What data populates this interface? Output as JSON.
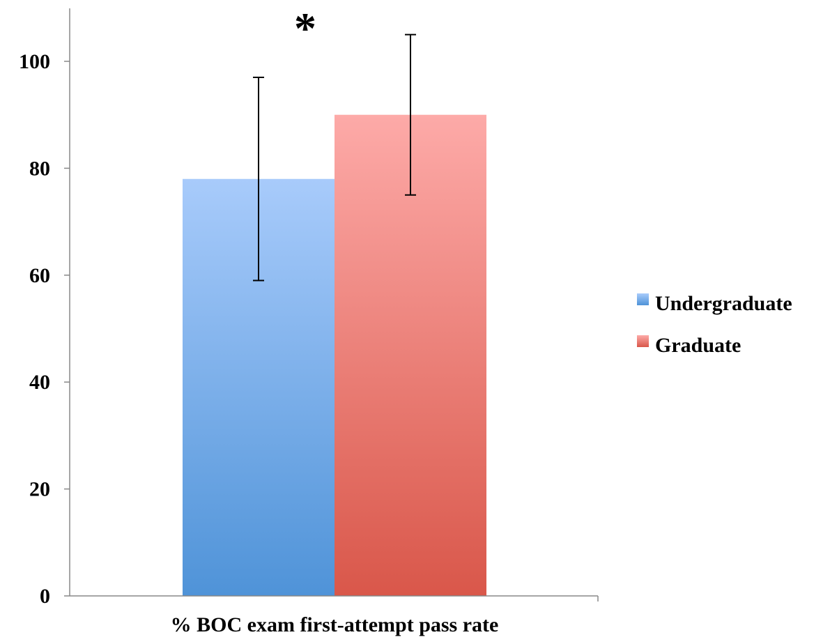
{
  "chart_data": {
    "type": "bar",
    "categories": [
      "% BOC exam first-attempt pass rate"
    ],
    "series": [
      {
        "name": "Undergraduate",
        "values": [
          78
        ],
        "error": [
          {
            "low": 59,
            "high": 97
          }
        ],
        "color_top": "#a8cbfb",
        "color_bottom": "#4f93d8"
      },
      {
        "name": "Graduate",
        "values": [
          90
        ],
        "error": [
          {
            "low": 75,
            "high": 105
          }
        ],
        "color_top": "#fdaaa8",
        "color_bottom": "#d9574a"
      }
    ],
    "title": "",
    "xlabel": "",
    "ylabel": "",
    "ylim": [
      0,
      110
    ],
    "yticks": [
      "0",
      "20",
      "40",
      "60",
      "80",
      "100"
    ],
    "grid": false,
    "legend_position": "right",
    "annotation": "*"
  }
}
